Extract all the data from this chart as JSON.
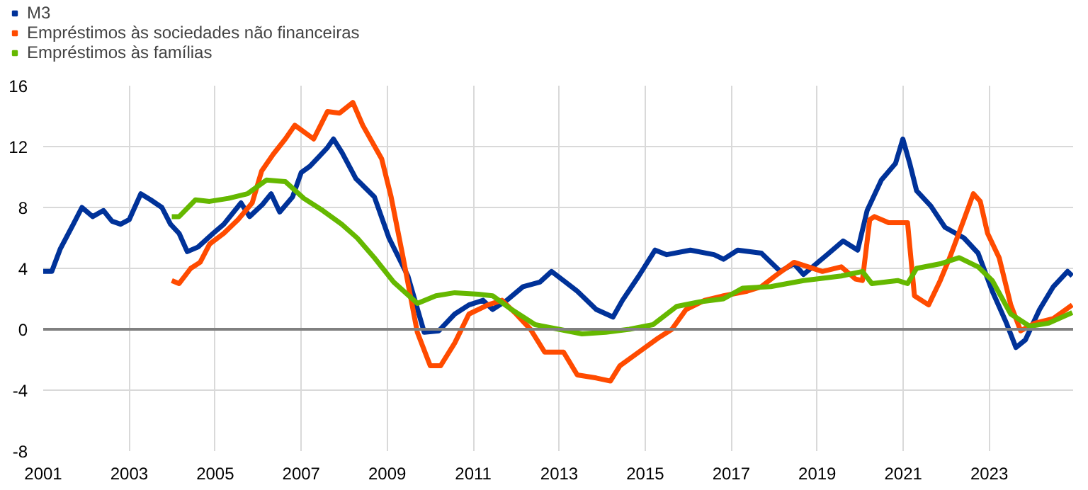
{
  "chart_data": {
    "type": "line",
    "xlim": [
      2001,
      2024.95
    ],
    "ylim": [
      -8,
      16
    ],
    "xticks": [
      2001,
      2003,
      2005,
      2007,
      2009,
      2011,
      2013,
      2015,
      2017,
      2019,
      2021,
      2023
    ],
    "yticks": [
      -8,
      -4,
      0,
      4,
      8,
      12,
      16
    ],
    "grid": true,
    "legend": "top left",
    "marker": "none",
    "line_style": "solid",
    "ref_lines": [
      {
        "axis": "y",
        "value": 0,
        "color": "#808080"
      }
    ],
    "series": [
      {
        "name": "M3",
        "color": "#003299",
        "x": [
          2001.0,
          2001.2,
          2001.4,
          2001.7,
          2001.9,
          2002.15,
          2002.4,
          2002.6,
          2002.8,
          2003.0,
          2003.27,
          2003.5,
          2003.76,
          2003.96,
          2004.16,
          2004.35,
          2004.6,
          2004.95,
          2005.2,
          2005.6,
          2005.8,
          2006.1,
          2006.3,
          2006.5,
          2006.8,
          2007.0,
          2007.2,
          2007.4,
          2007.6,
          2007.75,
          2007.95,
          2008.27,
          2008.7,
          2009.04,
          2009.48,
          2009.86,
          2010.2,
          2010.57,
          2010.9,
          2011.23,
          2011.45,
          2011.78,
          2012.16,
          2012.55,
          2012.82,
          2013.1,
          2013.42,
          2013.86,
          2014.25,
          2014.47,
          2014.85,
          2015.23,
          2015.5,
          2016.05,
          2016.6,
          2016.82,
          2017.15,
          2017.7,
          2018.14,
          2018.46,
          2018.68,
          2019.23,
          2019.6,
          2019.94,
          2020.16,
          2020.49,
          2020.82,
          2020.99,
          2021.15,
          2021.31,
          2021.64,
          2021.97,
          2022.41,
          2022.74,
          2023.07,
          2023.4,
          2023.62,
          2023.84,
          2024.17,
          2024.49,
          2024.82,
          2024.93
        ],
        "values": [
          3.8,
          3.8,
          5.3,
          6.9,
          8.0,
          7.4,
          7.8,
          7.1,
          6.9,
          7.2,
          8.9,
          8.5,
          8.0,
          6.9,
          6.3,
          5.1,
          5.4,
          6.3,
          6.9,
          8.3,
          7.4,
          8.2,
          8.9,
          7.7,
          8.7,
          10.3,
          10.7,
          11.3,
          11.9,
          12.5,
          11.6,
          9.9,
          8.7,
          6.0,
          3.5,
          -0.2,
          -0.1,
          1.0,
          1.6,
          1.9,
          1.3,
          1.9,
          2.8,
          3.1,
          3.8,
          3.2,
          2.5,
          1.3,
          0.8,
          1.9,
          3.5,
          5.2,
          4.9,
          5.2,
          4.9,
          4.6,
          5.2,
          5.0,
          3.8,
          4.3,
          3.6,
          4.9,
          5.8,
          5.2,
          7.8,
          9.8,
          10.9,
          12.5,
          10.9,
          9.1,
          8.1,
          6.7,
          6.0,
          5.0,
          2.5,
          0.4,
          -1.2,
          -0.7,
          1.3,
          2.8,
          3.8,
          3.5
        ]
      },
      {
        "name": "Empréstimos às sociedades não financeiras",
        "color": "#ff4b00",
        "x": [
          2003.99,
          2004.16,
          2004.43,
          2004.65,
          2004.87,
          2005.2,
          2005.53,
          2005.86,
          2006.08,
          2006.35,
          2006.63,
          2006.85,
          2007.29,
          2007.61,
          2007.89,
          2008.2,
          2008.43,
          2008.87,
          2009.09,
          2009.37,
          2009.7,
          2010.0,
          2010.24,
          2010.57,
          2010.9,
          2011.34,
          2011.67,
          2012.0,
          2012.33,
          2012.66,
          2013.1,
          2013.42,
          2013.86,
          2014.19,
          2014.41,
          2014.85,
          2015.29,
          2015.62,
          2015.95,
          2016.38,
          2016.82,
          2017.37,
          2017.7,
          2018.02,
          2018.46,
          2018.79,
          2019.12,
          2019.56,
          2019.89,
          2020.05,
          2020.22,
          2020.33,
          2020.66,
          2021.1,
          2021.26,
          2021.59,
          2021.86,
          2022.08,
          2022.41,
          2022.63,
          2022.79,
          2022.96,
          2023.23,
          2023.5,
          2023.73,
          2024.06,
          2024.49,
          2024.93
        ],
        "values": [
          3.2,
          3.0,
          4.0,
          4.4,
          5.6,
          6.3,
          7.2,
          8.3,
          10.4,
          11.5,
          12.5,
          13.4,
          12.5,
          14.3,
          14.2,
          14.9,
          13.4,
          11.2,
          8.7,
          4.7,
          -0.2,
          -2.4,
          -2.4,
          -0.9,
          1.0,
          1.6,
          1.9,
          1.0,
          0.0,
          -1.5,
          -1.5,
          -3.0,
          -3.2,
          -3.4,
          -2.4,
          -1.5,
          -0.6,
          0.0,
          1.3,
          1.9,
          2.2,
          2.5,
          2.8,
          3.5,
          4.4,
          4.1,
          3.8,
          4.1,
          3.3,
          3.2,
          7.2,
          7.4,
          7.0,
          7.0,
          2.2,
          1.6,
          3.2,
          4.7,
          7.2,
          8.9,
          8.4,
          6.3,
          4.7,
          1.6,
          -0.1,
          0.4,
          0.7,
          1.6
        ]
      },
      {
        "name": "Empréstimos às famílias",
        "color": "#65b800",
        "x": [
          2003.99,
          2004.16,
          2004.54,
          2004.87,
          2005.31,
          2005.75,
          2006.19,
          2006.63,
          2007.06,
          2007.5,
          2007.94,
          2008.3,
          2008.7,
          2009.15,
          2009.7,
          2010.13,
          2010.57,
          2011.12,
          2011.45,
          2011.89,
          2012.44,
          2012.99,
          2013.53,
          2014.08,
          2014.63,
          2015.18,
          2015.73,
          2016.27,
          2016.82,
          2017.26,
          2017.92,
          2018.68,
          2019.56,
          2020.05,
          2020.27,
          2020.87,
          2021.1,
          2021.31,
          2021.86,
          2022.3,
          2022.74,
          2023.07,
          2023.5,
          2023.94,
          2024.38,
          2024.93
        ],
        "values": [
          7.4,
          7.4,
          8.5,
          8.4,
          8.6,
          8.9,
          9.8,
          9.7,
          8.6,
          7.8,
          6.9,
          6.0,
          4.7,
          3.1,
          1.7,
          2.2,
          2.4,
          2.3,
          2.2,
          1.3,
          0.3,
          0.0,
          -0.3,
          -0.2,
          0.0,
          0.3,
          1.5,
          1.8,
          2.0,
          2.7,
          2.8,
          3.2,
          3.5,
          3.8,
          3.0,
          3.2,
          3.0,
          4.0,
          4.3,
          4.7,
          4.1,
          3.2,
          1.0,
          0.2,
          0.4,
          1.1
        ]
      }
    ]
  }
}
